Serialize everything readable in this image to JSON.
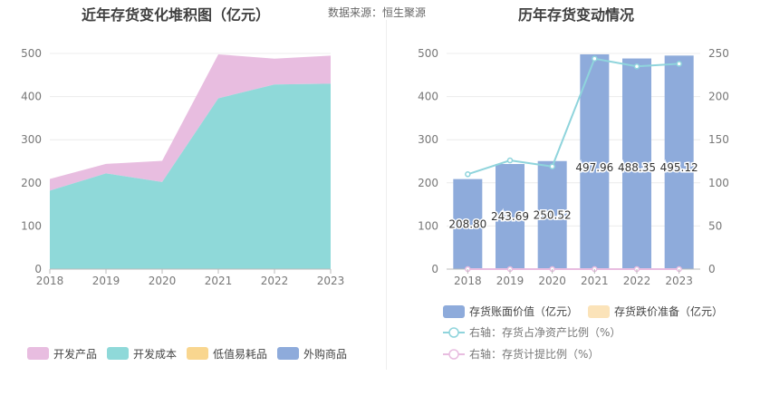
{
  "source": "数据来源：恒生聚源",
  "chart_data": [
    {
      "type": "area",
      "stacked": true,
      "title": "近年存货变化堆积图（亿元）",
      "x": [
        "2018",
        "2019",
        "2020",
        "2021",
        "2022",
        "2023"
      ],
      "ylim": [
        0,
        500
      ],
      "yticks": [
        0,
        100,
        200,
        300,
        400,
        500
      ],
      "grid": true,
      "legend_position": "bottom",
      "series": [
        {
          "name": "开发成本",
          "color": "#8fd9d9",
          "values": [
            182,
            222,
            202,
            396,
            428,
            430
          ]
        },
        {
          "name": "开发产品",
          "color": "#e8bde0",
          "values": [
            27,
            22,
            49,
            102,
            60,
            65
          ]
        },
        {
          "name": "低值易耗品",
          "color": "#f9d68f",
          "values": [
            0,
            0,
            0,
            0,
            0,
            0
          ]
        },
        {
          "name": "外购商品",
          "color": "#8eabdb",
          "values": [
            0,
            0,
            0,
            0,
            0,
            0
          ]
        }
      ],
      "legend": [
        {
          "name": "开发产品",
          "color": "#e8bde0"
        },
        {
          "name": "开发成本",
          "color": "#8fd9d9"
        },
        {
          "name": "低值易耗品",
          "color": "#f9d68f"
        },
        {
          "name": "外购商品",
          "color": "#8eabdb"
        }
      ]
    },
    {
      "type": "bar",
      "title": "历年存货变动情况",
      "categories": [
        "2018",
        "2019",
        "2020",
        "2021",
        "2022",
        "2023"
      ],
      "ylim": [
        0,
        500
      ],
      "yticks": [
        0,
        100,
        200,
        300,
        400,
        500
      ],
      "y2lim": [
        0,
        250
      ],
      "y2ticks": [
        0,
        50,
        100,
        150,
        200,
        250
      ],
      "grid": true,
      "legend_position": "bottom",
      "series": [
        {
          "name": "存货账面价值（亿元）",
          "color": "#8eabdb",
          "axis": "left",
          "kind": "bar",
          "values": [
            208.8,
            243.69,
            250.52,
            497.96,
            488.35,
            495.12
          ],
          "labels": [
            "208.80",
            "243.69",
            "250.52",
            "497.96",
            "488.35",
            "495.12"
          ]
        },
        {
          "name": "存货跌价准备（亿元）",
          "color": "#fbe3b9",
          "axis": "left",
          "kind": "bar",
          "values": [
            0,
            0,
            0,
            0,
            0,
            0
          ]
        },
        {
          "name": "右轴：存货占净资产比例（%）",
          "color": "#8fd4dc",
          "axis": "right",
          "kind": "line",
          "values": [
            110,
            126,
            119,
            244,
            235,
            238
          ]
        },
        {
          "name": "右轴：存货计提比例（%）",
          "color": "#e8bde0",
          "axis": "right",
          "kind": "line",
          "values": [
            0,
            0,
            0,
            0,
            0,
            0
          ]
        }
      ]
    }
  ]
}
